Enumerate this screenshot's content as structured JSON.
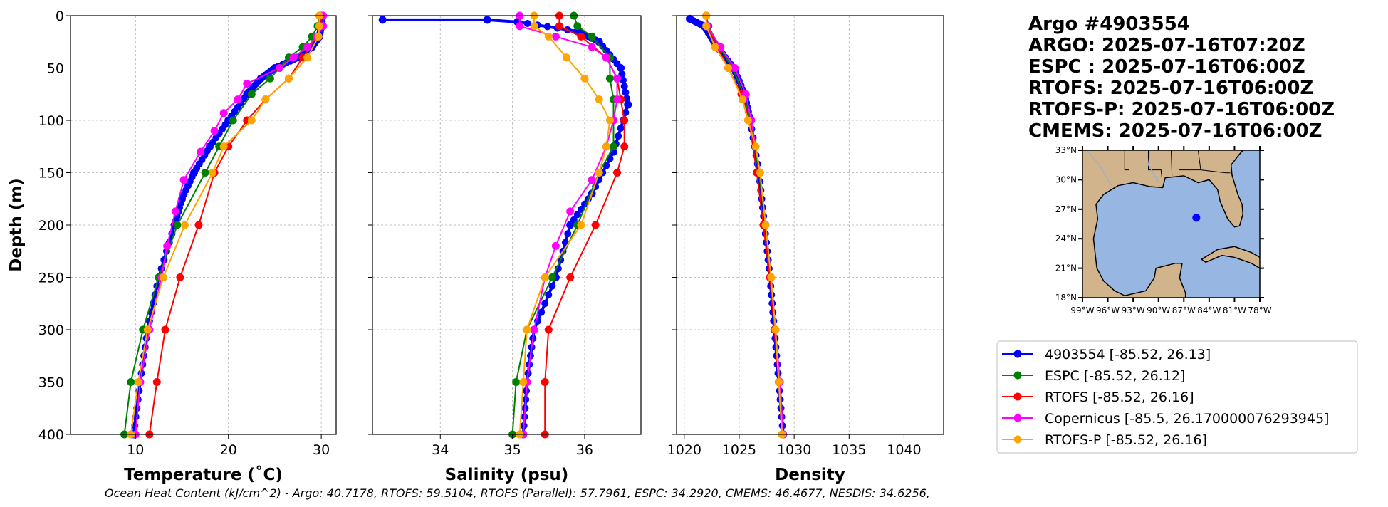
{
  "title_lines": [
    "Argo #4903554",
    "ARGO: 2025-07-16T07:20Z",
    "ESPC : 2025-07-16T06:00Z",
    "RTOFS: 2025-07-16T06:00Z",
    "RTOFS-P: 2025-07-16T06:00Z",
    "CMEMS: 2025-07-16T06:00Z"
  ],
  "ylabel": "Depth (m)",
  "footer": "Ocean Heat Content (kJ/cm^2) - Argo: 40.7178,  RTOFS: 59.5104,  RTOFS (Parallel): 57.7961,  ESPC: 34.2920,  CMEMS: 46.4677,  NESDIS: 34.6256,",
  "legend": [
    {
      "label": "4903554 [-85.52, 26.13]",
      "color": "#0000ff"
    },
    {
      "label": "ESPC [-85.52, 26.12]",
      "color": "#008000"
    },
    {
      "label": "RTOFS [-85.52, 26.16]",
      "color": "#ff0000"
    },
    {
      "label": "Copernicus [-85.5, 26.170000076293945]",
      "color": "#ff00ff"
    },
    {
      "label": "RTOFS-P [-85.52, 26.16]",
      "color": "#ffa500"
    }
  ],
  "map": {
    "lon_range": [
      -99,
      -78
    ],
    "lat_range": [
      18,
      33
    ],
    "lon_ticks": [
      -99,
      -96,
      -93,
      -90,
      -87,
      -84,
      -81,
      -78
    ],
    "lon_tick_labels": [
      "99°W",
      "96°W",
      "93°W",
      "90°W",
      "87°W",
      "84°W",
      "81°W",
      "78°W"
    ],
    "lat_ticks": [
      18,
      21,
      24,
      27,
      30,
      33
    ],
    "lat_tick_labels": [
      "18°N",
      "21°N",
      "24°N",
      "27°N",
      "30°N",
      "33°N"
    ],
    "float_position": [
      -85.52,
      26.13
    ],
    "land_color": "#d2b48c",
    "water_color": "#97b6e1",
    "float_color": "#0000ff"
  },
  "chart_data": [
    {
      "type": "line",
      "xlabel": "Temperature (˚C)",
      "ylabel": "Depth (m)",
      "xlim": [
        3,
        31.6
      ],
      "ylim": [
        400,
        0
      ],
      "xticks": [
        10,
        20,
        30
      ],
      "xtick_labels": [
        "10",
        "20",
        "30"
      ],
      "yticks": [
        0,
        50,
        100,
        150,
        200,
        250,
        300,
        350,
        400
      ],
      "ytick_labels": [
        "0",
        "50",
        "100",
        "150",
        "200",
        "250",
        "300",
        "350",
        "400"
      ],
      "grid": true,
      "series": [
        {
          "name": "4903554",
          "color": "#0000ff",
          "depth": [
            2,
            10,
            20,
            30,
            40,
            50,
            60,
            75,
            100,
            125,
            150,
            175,
            200,
            250,
            300,
            350,
            400
          ],
          "values": [
            30,
            30,
            29.8,
            29,
            27.5,
            25,
            23.5,
            22,
            20,
            18,
            16.3,
            15,
            14.2,
            12.5,
            11.3,
            10.5,
            9.8
          ]
        },
        {
          "name": "ESPC",
          "color": "#008000",
          "depth": [
            0,
            10,
            20,
            30,
            40,
            50,
            60,
            75,
            100,
            125,
            150,
            200,
            250,
            300,
            350,
            400
          ],
          "values": [
            29.8,
            29.6,
            29,
            28,
            26.5,
            25.5,
            24.5,
            22.5,
            20.5,
            19,
            17.5,
            14.5,
            12.5,
            10.8,
            9.5,
            8.8
          ]
        },
        {
          "name": "RTOFS",
          "color": "#ff0000",
          "depth": [
            0,
            10,
            20,
            40,
            60,
            80,
            100,
            125,
            150,
            200,
            250,
            300,
            350,
            400
          ],
          "values": [
            30,
            30,
            29.5,
            28,
            26.5,
            24,
            22,
            20,
            18.5,
            16.8,
            14.8,
            13.2,
            12.3,
            11.5
          ]
        },
        {
          "name": "Copernicus",
          "color": "#ff00ff",
          "depth": [
            0,
            10,
            20,
            30,
            40,
            50,
            65,
            80,
            93,
            110,
            130,
            157,
            187,
            220,
            250,
            300,
            350,
            400
          ],
          "values": [
            30.2,
            30.2,
            29.5,
            28.5,
            27,
            25.5,
            22,
            21,
            19.5,
            18.5,
            17,
            15.2,
            14.3,
            13.4,
            12.8,
            11.5,
            10.5,
            10
          ]
        },
        {
          "name": "RTOFS-P",
          "color": "#ffa500",
          "depth": [
            0,
            10,
            20,
            40,
            60,
            80,
            100,
            125,
            150,
            200,
            250,
            300,
            350,
            400
          ],
          "values": [
            29.8,
            29.8,
            29.7,
            28.5,
            26.5,
            24,
            22.5,
            19.5,
            18.3,
            15.3,
            13,
            11.3,
            10.3,
            9.5
          ]
        }
      ]
    },
    {
      "type": "line",
      "xlabel": "Salinity (psu)",
      "xlim": [
        33.06,
        36.78
      ],
      "ylim": [
        400,
        0
      ],
      "xticks": [
        34,
        35,
        36
      ],
      "xtick_labels": [
        "34",
        "35",
        "36"
      ],
      "grid": true,
      "series": [
        {
          "name": "4903554",
          "color": "#0000ff",
          "depth": [
            4,
            4,
            6,
            15,
            25,
            50,
            85,
            130,
            170,
            200,
            250,
            300,
            350,
            400
          ],
          "values": [
            33.2,
            34.65,
            35.07,
            35.9,
            36.2,
            36.5,
            36.6,
            36.4,
            36.1,
            35.8,
            35.6,
            35.3,
            35.2,
            35.15
          ]
        },
        {
          "name": "ESPC",
          "color": "#008000",
          "depth": [
            0,
            10,
            20,
            40,
            60,
            80,
            100,
            125,
            150,
            200,
            250,
            300,
            350,
            400
          ],
          "values": [
            35.85,
            35.9,
            36.1,
            36.35,
            36.35,
            36.4,
            36.4,
            36.4,
            36.2,
            35.9,
            35.55,
            35.2,
            35.05,
            35.0
          ]
        },
        {
          "name": "RTOFS",
          "color": "#ff0000",
          "depth": [
            0,
            10,
            20,
            40,
            60,
            80,
            100,
            125,
            150,
            200,
            250,
            300,
            350,
            400
          ],
          "values": [
            35.65,
            35.65,
            35.95,
            36.3,
            36.45,
            36.5,
            36.55,
            36.55,
            36.45,
            36.15,
            35.8,
            35.5,
            35.45,
            35.45
          ]
        },
        {
          "name": "Copernicus",
          "color": "#ff00ff",
          "depth": [
            0,
            10,
            20,
            30,
            40,
            60,
            80,
            100,
            125,
            157,
            187,
            220,
            250,
            300,
            350,
            400
          ],
          "values": [
            35.1,
            35.1,
            35.6,
            36.1,
            36.3,
            36.45,
            36.45,
            36.4,
            36.3,
            36.1,
            35.8,
            35.6,
            35.45,
            35.3,
            35.2,
            35.15
          ]
        },
        {
          "name": "RTOFS-P",
          "color": "#ffa500",
          "depth": [
            0,
            10,
            20,
            40,
            60,
            80,
            100,
            125,
            150,
            200,
            250,
            300,
            350,
            400
          ],
          "values": [
            35.3,
            35.3,
            35.5,
            35.75,
            36.0,
            36.2,
            36.35,
            36.3,
            36.2,
            35.95,
            35.45,
            35.2,
            35.15,
            35.1
          ]
        }
      ]
    },
    {
      "type": "line",
      "xlabel": "Density",
      "xlim": [
        1019.3,
        1043.6
      ],
      "ylim": [
        400,
        0
      ],
      "xticks": [
        1020,
        1025,
        1030,
        1035,
        1040
      ],
      "xtick_labels": [
        "1020",
        "1025",
        "1030",
        "1035",
        "1040"
      ],
      "grid": true,
      "series": [
        {
          "name": "4903554",
          "color": "#0000ff",
          "depth": [
            3,
            10,
            30,
            50,
            75,
            100,
            150,
            200,
            250,
            300,
            350,
            400
          ],
          "values": [
            1020.5,
            1021.8,
            1023,
            1024.5,
            1025.5,
            1026,
            1026.8,
            1027.3,
            1027.8,
            1028.2,
            1028.6,
            1029
          ]
        },
        {
          "name": "ESPC",
          "color": "#008000",
          "depth": [
            0,
            10,
            30,
            50,
            75,
            100,
            150,
            200,
            250,
            300,
            350,
            400
          ],
          "values": [
            1022,
            1022.2,
            1023.2,
            1024.4,
            1025.4,
            1026,
            1026.8,
            1027.4,
            1027.9,
            1028.3,
            1028.7,
            1029
          ]
        },
        {
          "name": "RTOFS",
          "color": "#ff0000",
          "depth": [
            0,
            10,
            30,
            50,
            75,
            100,
            150,
            200,
            250,
            300,
            350,
            400
          ],
          "values": [
            1022,
            1022.1,
            1023,
            1024,
            1025.2,
            1025.9,
            1026.6,
            1027.2,
            1027.8,
            1028.2,
            1028.6,
            1028.9
          ]
        },
        {
          "name": "Copernicus",
          "color": "#ff00ff",
          "depth": [
            0,
            10,
            30,
            50,
            75,
            100,
            150,
            200,
            250,
            300,
            350,
            400
          ],
          "values": [
            1022,
            1022.1,
            1023.3,
            1024.6,
            1025.6,
            1026.1,
            1026.9,
            1027.4,
            1027.9,
            1028.3,
            1028.7,
            1029
          ]
        },
        {
          "name": "RTOFS-P",
          "color": "#ffa500",
          "depth": [
            0,
            10,
            30,
            50,
            80,
            100,
            125,
            150,
            200,
            250,
            300,
            350,
            400
          ],
          "values": [
            1022,
            1022,
            1022.8,
            1024,
            1025.3,
            1025.8,
            1026.5,
            1026.9,
            1027.4,
            1027.9,
            1028.3,
            1028.6,
            1028.9
          ]
        }
      ]
    }
  ]
}
